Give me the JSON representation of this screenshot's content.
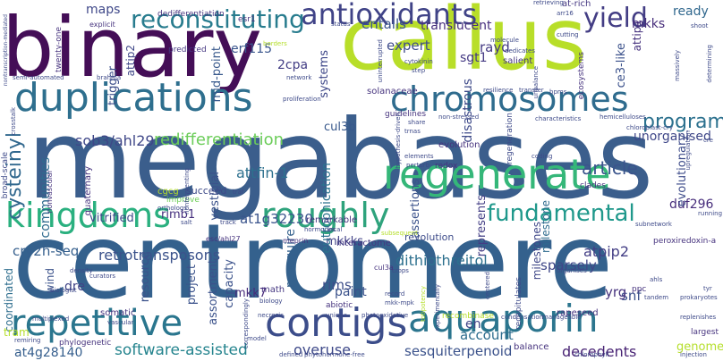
{
  "words": {
    "megabases": "megabases",
    "centromere": "centromere",
    "binary": "binary",
    "callus": "callus",
    "kingdoms": "kingdoms",
    "regenerate": "regenerate",
    "duplications": "duplications",
    "chromosomes": "chromosomes",
    "repetitive": "repetitive",
    "contigs": "contigs",
    "aquaporin": "aquaporin",
    "roughly": "roughly",
    "antioxidants": "antioxidants",
    "reconstituting": "reconstituting",
    "yield": "yield",
    "fundamental": "fundamental",
    "programs": "programs",
    "article": "article",
    "redifferentiation": "redifferentiation",
    "software_assisted": "software-assisted",
    "sesquiterpenoid": "sesquiterpenoid",
    "decedents": "decedents",
    "overuse": "overuse",
    "attfin_1": "attfin-1",
    "sob3_ahl29": "sob3/ahl29",
    "cysteinyl": "cysteinyl",
    "communities": "communities",
    "duf296": "duf296",
    "at1g32230": "at1g32230",
    "cry2h_seq": "cry2h-seq",
    "retrotransposons": "retrotransposons",
    "dithiothreitol": "dithiothreitol",
    "sparsely": "sparsely",
    "atpip2": "atpip2",
    "snf": "snf",
    "yrg": "yrg",
    "at4g28140": "at4g28140",
    "account": "account",
    "genome": "genome",
    "paint": "paint",
    "rims": "rims",
    "entails": "entails",
    "translucent": "translucent",
    "expert": "expert",
    "rayd": "rayd",
    "erf115": "erf115",
    "cpa2": "2cpa",
    "maps": "maps",
    "mkks": "mkks",
    "ready": "ready",
    "sgt1": "sgt1",
    "unorganised": "unorganised",
    "cul3b": "cul3b",
    "systems": "systems",
    "mkk7": "mkk7",
    "assertions": "assertions",
    "mkkks": "mkkks",
    "dre": "dre",
    "rimb1": "rimb1",
    "vitrified": "vitrified",
    "resource": "resource",
    "evolutionary": "evolutionary",
    "milestone": "milestone",
    "milestones": "milestones",
    "reacquire": "reacquire",
    "revolution": "revolution",
    "eutrophication": "eutrophication",
    "represents": "represents",
    "en": "en",
    "attip2": "attip2",
    "attip1": "attip1",
    "trigger": "trigger",
    "mid_point": "mid-point",
    "ce3_like": "ce3-like",
    "disastrous": "disastrous",
    "vestigial": "vestigial",
    "nonvascular": "nonvascular",
    "quaternary": "quaternary",
    "coordinated": "coordinated",
    "wind": "wind",
    "project": "project",
    "capacity": "capacity",
    "assortment": "assortment",
    "esc_ahl27": "esc/ahl27",
    "meprin": "meprin",
    "interactome": "interactome",
    "cul3a": "cul3a",
    "peroxiredoxin_a": "peroxiredoxin-a",
    "rapeseed": "rapeseed",
    "ppc": "ppc",
    "recombinase": "recombinase",
    "condensation": "condensation",
    "manageable": "manageable",
    "balance": "balance",
    "tram": "tram",
    "somatic": "somatic",
    "vascular": "vascular",
    "math": "math",
    "biology": "biology",
    "abiotic": "abiotic",
    "mkk_mpk": "mkk-mpk",
    "record": "record",
    "totipotency": "totipotency",
    "recapitulates": "recapitulates",
    "largest": "largest",
    "phylogenetic": "phylogenetic",
    "multiplexed": "multiplexed",
    "biologist": "biologist",
    "remiring": "remiring",
    "curators": "curators",
    "density": "density",
    "cgcg": "cgcg",
    "orthologs": "orthologs",
    "improve": "improve",
    "succeed": "succeed",
    "traf": "traf",
    "nonfermenting": "nonfermenting",
    "salt": "salt",
    "track": "track",
    "remarkable": "remarkable",
    "hormones": "hormones",
    "local": "local",
    "clades": "clades",
    "running": "running",
    "subnetwork": "subnetwork",
    "redox": "redox",
    "evolution": "evolution",
    "coding": "coding",
    "elements": "elements",
    "perturb": "perturb",
    "trnas": "trnas",
    "regeneration": "regeneration",
    "guidelines": "guidelines",
    "share": "share",
    "non_stressed": "non-stressed",
    "characteristics": "characteristics",
    "hemicelluloses": "hemicelluloses",
    "bpms": "bpms",
    "resilience": "resilience",
    "transfer": "transfer",
    "solanaceae": "solanaceae",
    "proliferation": "proliferation",
    "network": "network",
    "semi_automated": "semi-automated",
    "brahma": "brahma",
    "predicted": "predicted",
    "explicit": "explicit",
    "twenty_one": "twenty-one",
    "dedifferentiation": "dedifferentiation",
    "esr1": "esr1",
    "status": "status",
    "borders": "borders",
    "cytokinin": "cytokinin",
    "step": "step",
    "molecule": "molecule",
    "dedicates": "dedicates",
    "salient": "salient",
    "cutting": "cutting",
    "ecosystems": "ecosystems",
    "massively": "massively",
    "determining": "determining",
    "shoot": "shoot",
    "arr16": "arr16",
    "at_rich": "at-rich",
    "retrieving": "retrieving",
    "broad_scale": "broad-scale",
    "crosstalk": "crosstalk",
    "nontranscription_mediated": "nontranscription-mediated",
    "uninterrupted": "uninterrupted",
    "necrosis": "necrosis",
    "unique": "unique",
    "photooxidative": "photooxidative",
    "defined": "defined",
    "phytohormone_free": "phytohormone-free",
    "injection": "injection",
    "replenishes": "replenishes",
    "prokaryotes": "prokaryotes",
    "tandem": "tandem",
    "ahls": "ahls",
    "organises": "organises",
    "tyr": "tyr",
    "model": "model",
    "correspondingly": "correspondingly",
    "centered": "centered",
    "experimentally": "experimentally",
    "crops": "crops",
    "subsequent": "subsequent",
    "cre": "cre",
    "upregulation": "upregulation",
    "chloroplast_cry": "chloroplast-cry",
    "unbalance": "unbalance",
    "hypothesis_driven": "hypothesis-driven",
    "chlorophyll": "chlorophyll"
  }
}
